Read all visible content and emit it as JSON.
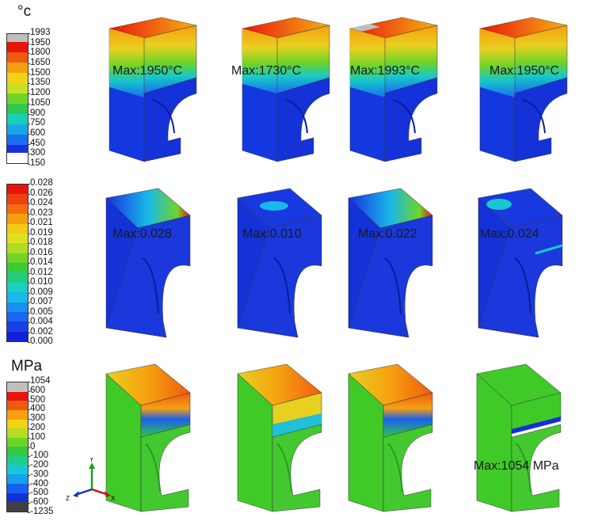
{
  "legends": [
    {
      "title": "°c",
      "ticks": [
        "1993",
        "1950",
        "1800",
        "1650",
        "1500",
        "1350",
        "1200",
        "1050",
        "900",
        "750",
        "600",
        "450",
        "300",
        "150"
      ]
    },
    {
      "title": "",
      "ticks": [
        "0.028",
        "0.026",
        "0.024",
        "0.023",
        "0.021",
        "0.019",
        "0.018",
        "0.016",
        "0.014",
        "0.012",
        "0.010",
        "0.009",
        "0.007",
        "0.005",
        "0.004",
        "0.002",
        "0.000"
      ]
    },
    {
      "title": "MPa",
      "ticks": [
        "1054",
        "600",
        "500",
        "400",
        "300",
        "200",
        "100",
        "0",
        "-100",
        "-200",
        "-300",
        "-400",
        "-500",
        "-600",
        "-1235"
      ]
    }
  ],
  "rows": [
    {
      "labels": [
        "Max:1950°C",
        "Max:1730°C",
        "Max:1993°C",
        "Max:1950°C"
      ]
    },
    {
      "labels": [
        "Max:0.028",
        "Max:0.010",
        "Max:0.022",
        "Max:0.024"
      ]
    },
    {
      "labels": [
        "",
        "",
        "",
        "Max:1054 MPa"
      ]
    }
  ],
  "axes": {
    "x": "X",
    "y": "Y",
    "z": "Z"
  },
  "colors": {
    "blue": "#1432d8",
    "green": "#3fca28",
    "red": "#e02010",
    "orange": "#f08a10",
    "yellow": "#e8d020",
    "cyan": "#20c0d8",
    "gray": "#b8b8b8"
  }
}
